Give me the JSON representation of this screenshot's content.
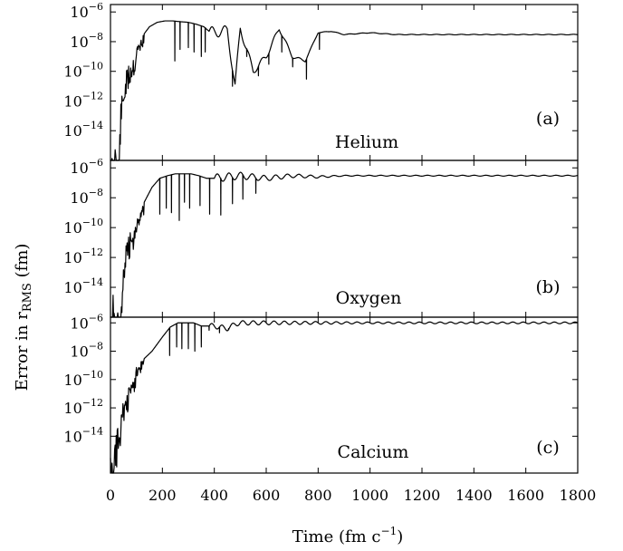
{
  "figure": {
    "ylabel": "Error in r",
    "ylabel_sub": "RMS",
    "ylabel_unit": " (fm)",
    "xlabel_pre": "Time (fm c",
    "xlabel_sup": "−1",
    "xlabel_post": ")"
  },
  "chart_data": [
    {
      "type": "line",
      "panel": "(a)",
      "annotation": "Helium",
      "xlabel": "",
      "ylabel": "Error in rRMS (fm)",
      "xlim": [
        0,
        1800
      ],
      "ylim_log10": [
        -16,
        -5.5
      ],
      "y_scale": "log",
      "grid": false,
      "x_ticks": [
        0,
        200,
        400,
        600,
        800,
        1000,
        1200,
        1400,
        1600,
        1800
      ],
      "y_ticks": [
        {
          "base": "10",
          "exp": "−6",
          "log10": -6
        },
        {
          "base": "10",
          "exp": "−8",
          "log10": -8
        },
        {
          "base": "10",
          "exp": "−10",
          "log10": -10
        },
        {
          "base": "10",
          "exp": "−12",
          "log10": -12
        },
        {
          "base": "10",
          "exp": "−14",
          "log10": -14
        }
      ],
      "series": [
        {
          "x": [
            0,
            10,
            20,
            30,
            40,
            60,
            80,
            100,
            120,
            150,
            180,
            210,
            240,
            270,
            300,
            330,
            360,
            380,
            400,
            450,
            480,
            500,
            550,
            600,
            650,
            700,
            750,
            800,
            850,
            900,
            1000,
            1100,
            1200,
            1400,
            1600,
            1800
          ],
          "y": [
            1e-15,
            1e-16,
            1e-14,
            1e-16,
            1e-12,
            1e-10,
            1e-09,
            5e-09,
            2e-08,
            1e-07,
            2e-07,
            2.5e-07,
            2.5e-07,
            2.2e-07,
            2e-07,
            1.5e-07,
            1e-07,
            5e-08,
            4e-08,
            6e-08,
            1e-11,
            8e-08,
            1e-10,
            1e-09,
            8e-08,
            1e-09,
            5e-10,
            4e-08,
            5e-08,
            3e-08,
            4e-08,
            3e-08,
            3e-08,
            3e-08,
            3e-08,
            3e-08
          ]
        }
      ],
      "dips": [
        {
          "x": 248,
          "y": 5e-10
        },
        {
          "x": 268,
          "y": 3e-09
        },
        {
          "x": 300,
          "y": 4e-09
        },
        {
          "x": 322,
          "y": 2e-09
        },
        {
          "x": 350,
          "y": 1e-09
        },
        {
          "x": 365,
          "y": 2e-09
        },
        {
          "x": 470,
          "y": 1e-11
        },
        {
          "x": 525,
          "y": 1e-09
        },
        {
          "x": 570,
          "y": 5e-11
        },
        {
          "x": 610,
          "y": 3e-10
        },
        {
          "x": 660,
          "y": 2e-09
        },
        {
          "x": 702,
          "y": 2e-10
        },
        {
          "x": 755,
          "y": 3e-11
        },
        {
          "x": 805,
          "y": 3e-09
        }
      ],
      "oscillation": {
        "decay_start": 380,
        "decay_length": 420,
        "amplitude_dex": 0.35,
        "period": 48,
        "floor_amplitude_dex": 0.02
      }
    },
    {
      "type": "line",
      "panel": "(b)",
      "annotation": "Oxygen",
      "xlabel": "",
      "ylabel": "Error in rRMS (fm)",
      "xlim": [
        0,
        1800
      ],
      "ylim_log10": [
        -16,
        -5.5
      ],
      "y_scale": "log",
      "grid": false,
      "x_ticks": [
        0,
        200,
        400,
        600,
        800,
        1000,
        1200,
        1400,
        1600,
        1800
      ],
      "y_ticks": [
        {
          "base": "10",
          "exp": "−6",
          "log10": -6
        },
        {
          "base": "10",
          "exp": "−8",
          "log10": -8
        },
        {
          "base": "10",
          "exp": "−10",
          "log10": -10
        },
        {
          "base": "10",
          "exp": "−12",
          "log10": -12
        },
        {
          "base": "10",
          "exp": "−14",
          "log10": -14
        }
      ],
      "series": [
        {
          "x": [
            0,
            10,
            20,
            30,
            40,
            50,
            60,
            80,
            100,
            130,
            160,
            190,
            220,
            250,
            280,
            310,
            340,
            370,
            400,
            450,
            500,
            600,
            700,
            800,
            900,
            1000,
            1200,
            1400,
            1600,
            1800
          ],
          "y": [
            1e-16,
            1e-14,
            1e-16,
            1e-15,
            1e-16,
            1e-12,
            1e-11,
            1e-10,
            3e-10,
            5e-09,
            5e-08,
            2e-07,
            3e-07,
            4e-07,
            4e-07,
            4e-07,
            3e-07,
            2e-07,
            2e-07,
            2.5e-07,
            3e-07,
            2e-07,
            3e-07,
            2.5e-07,
            3e-07,
            3e-07,
            3e-07,
            3e-07,
            3e-07,
            3e-07
          ]
        }
      ],
      "dips": [
        {
          "x": 190,
          "y": 8e-10
        },
        {
          "x": 215,
          "y": 2e-09
        },
        {
          "x": 235,
          "y": 1e-09
        },
        {
          "x": 265,
          "y": 3e-10
        },
        {
          "x": 285,
          "y": 5e-09
        },
        {
          "x": 305,
          "y": 2e-09
        },
        {
          "x": 345,
          "y": 3e-09
        },
        {
          "x": 382,
          "y": 8e-10
        },
        {
          "x": 425,
          "y": 7e-10
        },
        {
          "x": 470,
          "y": 4e-09
        },
        {
          "x": 510,
          "y": 8e-09
        },
        {
          "x": 560,
          "y": 2e-08
        }
      ],
      "oscillation": {
        "decay_start": 400,
        "decay_length": 500,
        "amplitude_dex": 0.25,
        "period": 45,
        "floor_amplitude_dex": 0.03
      }
    },
    {
      "type": "line",
      "panel": "(c)",
      "annotation": "Calcium",
      "xlabel": "Time (fm c−1)",
      "ylabel": "Error in rRMS (fm)",
      "xlim": [
        0,
        1800
      ],
      "ylim_log10": [
        -16.6,
        -5.6
      ],
      "y_scale": "log",
      "grid": false,
      "x_ticks": [
        0,
        200,
        400,
        600,
        800,
        1000,
        1200,
        1400,
        1600,
        1800
      ],
      "y_ticks": [
        {
          "base": "10",
          "exp": "−6",
          "log10": -6
        },
        {
          "base": "10",
          "exp": "−8",
          "log10": -8
        },
        {
          "base": "10",
          "exp": "−10",
          "log10": -10
        },
        {
          "base": "10",
          "exp": "−12",
          "log10": -12
        },
        {
          "base": "10",
          "exp": "−14",
          "log10": -14
        }
      ],
      "series": [
        {
          "x": [
            0,
            10,
            20,
            30,
            40,
            60,
            80,
            100,
            130,
            160,
            200,
            230,
            260,
            290,
            320,
            350,
            400,
            450,
            480,
            500,
            600,
            700,
            800,
            900,
            1000,
            1200,
            1400,
            1600,
            1800
          ],
          "y": [
            1e-15,
            1e-16,
            1e-14,
            1e-13,
            1e-12,
            1e-11,
            1e-10,
            1e-09,
            3e-09,
            1e-08,
            1e-07,
            5e-07,
            1e-06,
            1e-06,
            1e-06,
            6e-07,
            6e-07,
            4e-07,
            8e-07,
            1e-06,
            1e-06,
            1e-06,
            1e-06,
            1e-06,
            1e-06,
            1e-06,
            1e-06,
            1e-06,
            1e-06
          ]
        }
      ],
      "dips": [
        {
          "x": 228,
          "y": 5e-09
        },
        {
          "x": 255,
          "y": 2e-08
        },
        {
          "x": 275,
          "y": 1.5e-08
        },
        {
          "x": 300,
          "y": 1.5e-08
        },
        {
          "x": 325,
          "y": 1e-08
        },
        {
          "x": 350,
          "y": 2e-08
        },
        {
          "x": 380,
          "y": 3e-07
        },
        {
          "x": 420,
          "y": 2e-07
        },
        {
          "x": 455,
          "y": 4e-07
        }
      ],
      "oscillation": {
        "decay_start": 380,
        "decay_length": 600,
        "amplitude_dex": 0.12,
        "period": 40,
        "floor_amplitude_dex": 0.06
      }
    }
  ]
}
